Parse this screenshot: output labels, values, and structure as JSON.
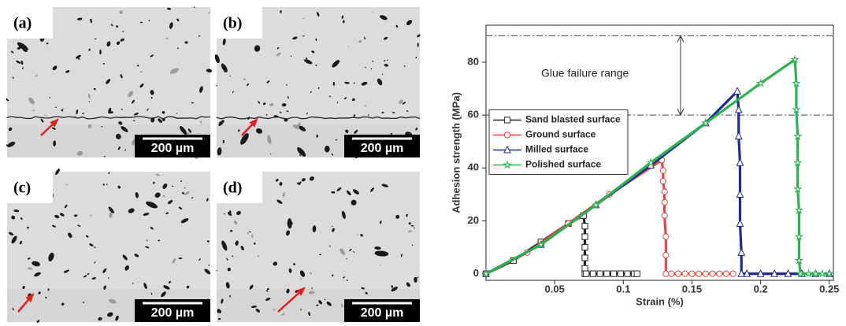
{
  "micrographs": [
    {
      "label": "(a)",
      "scale_bar": "200 µm"
    },
    {
      "label": "(b)",
      "scale_bar": "200 µm"
    },
    {
      "label": "(c)",
      "scale_bar": "200 µm"
    },
    {
      "label": "(d)",
      "scale_bar": "200 µm"
    }
  ],
  "chart_data": {
    "type": "line",
    "x_label": "Strain (%)",
    "y_label": "Adhesion strength (MPa)",
    "xlim": [
      0,
      0.253
    ],
    "ylim": [
      -2.5,
      94
    ],
    "xticks": [
      0.05,
      0.1,
      0.15,
      0.2,
      0.25
    ],
    "yticks": [
      0,
      20,
      40,
      60,
      80
    ],
    "legend": "center left",
    "annotation": {
      "text": "Glue failure range",
      "range": [
        60,
        90
      ]
    },
    "series": [
      {
        "name": "Sand blasted surface",
        "color": "#222222",
        "marker": "square",
        "x": [
          0,
          0.02,
          0.04,
          0.06,
          0.071,
          0.072,
          0.072,
          0.072,
          0.072,
          0.072,
          0.072,
          0.073,
          0.078,
          0.083,
          0.088,
          0.093,
          0.098,
          0.103,
          0.108,
          0.11
        ],
        "values": [
          0,
          5,
          12,
          19,
          22,
          18,
          14,
          10,
          6,
          2,
          0,
          0,
          0,
          0,
          0,
          0,
          0,
          0,
          0,
          0
        ]
      },
      {
        "name": "Ground surface",
        "color": "#e8453c",
        "marker": "circle",
        "x": [
          0,
          0.03,
          0.06,
          0.09,
          0.128,
          0.129,
          0.129,
          0.13,
          0.13,
          0.13,
          0.131,
          0.131,
          0.131,
          0.135,
          0.14,
          0.145,
          0.15,
          0.155,
          0.16,
          0.165,
          0.17,
          0.175,
          0.18
        ],
        "values": [
          0,
          8,
          19,
          30,
          43,
          39,
          35,
          31,
          27,
          22,
          14,
          7,
          0,
          0,
          0,
          0,
          0,
          0,
          0,
          0,
          0,
          0,
          0
        ]
      },
      {
        "name": "Milled surface",
        "color": "#1c2a9c",
        "marker": "triangle",
        "x": [
          0,
          0.04,
          0.08,
          0.12,
          0.16,
          0.183,
          0.184,
          0.184,
          0.185,
          0.185,
          0.185,
          0.186,
          0.186,
          0.19,
          0.2,
          0.21,
          0.22,
          0.23,
          0.24,
          0.25
        ],
        "values": [
          0,
          11,
          26,
          41,
          57,
          69,
          62,
          52,
          42,
          30,
          19,
          8,
          0,
          0,
          0,
          0,
          0,
          0,
          0,
          0
        ]
      },
      {
        "name": "Polished surface",
        "color": "#2bb24c",
        "marker": "star",
        "x": [
          0,
          0.04,
          0.08,
          0.12,
          0.16,
          0.2,
          0.225,
          0.226,
          0.226,
          0.227,
          0.227,
          0.227,
          0.228,
          0.228,
          0.228,
          0.229,
          0.229,
          0.235,
          0.24,
          0.245,
          0.25
        ],
        "values": [
          0,
          11,
          26,
          42,
          57,
          72,
          81,
          72,
          62,
          52,
          42,
          32,
          24,
          14,
          5,
          0,
          0,
          0,
          0,
          0,
          0
        ]
      }
    ]
  }
}
